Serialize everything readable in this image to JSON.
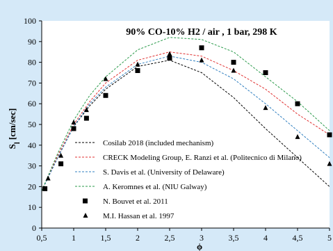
{
  "chart_data": {
    "type": "line",
    "title": "90% CO-10% H2 / air , 1 bar, 298 K",
    "xlabel": "ϕ",
    "ylabel": "S_l [cm/sec]",
    "xlim": [
      0.5,
      5.0
    ],
    "ylim": [
      0,
      100
    ],
    "x_ticks": [
      "0,5",
      "1",
      "1,5",
      "2",
      "2,5",
      "3",
      "3,5",
      "4",
      "4,5",
      "5"
    ],
    "y_ticks": [
      "0",
      "10",
      "20",
      "30",
      "40",
      "50",
      "60",
      "70",
      "80",
      "90",
      "100"
    ],
    "grid": false,
    "legend_position": "bottom-left",
    "series": [
      {
        "name": "Cosilab 2018 (included mechanism)",
        "style": "dashed-line",
        "color": "#000000",
        "x": [
          0.5,
          0.75,
          1.0,
          1.25,
          1.5,
          2.0,
          2.5,
          3.0,
          3.5,
          4.0,
          4.5,
          5.0
        ],
        "y": [
          18,
          34,
          49,
          59,
          67,
          78,
          81,
          75,
          63,
          48,
          34,
          20
        ]
      },
      {
        "name": "CRECK Modeling Group, E. Ranzi et al. (Politecnico di Milano)",
        "style": "dashed-line",
        "color": "#e03030",
        "x": [
          0.5,
          0.75,
          1.0,
          1.25,
          1.5,
          2.0,
          2.5,
          3.0,
          3.5,
          4.0,
          4.5,
          5.0
        ],
        "y": [
          18,
          35,
          50,
          61,
          70,
          81,
          85,
          83,
          76,
          67,
          55,
          45
        ]
      },
      {
        "name": "S. Davis et al. (University of Delaware)",
        "style": "dashed-line",
        "color": "#2f7fc0",
        "x": [
          0.5,
          0.75,
          1.0,
          1.25,
          1.5,
          2.0,
          2.5,
          3.0,
          3.5,
          4.0,
          4.5,
          5.0
        ],
        "y": [
          18,
          34,
          49,
          60,
          68,
          79,
          83,
          80,
          72,
          60,
          47,
          34
        ]
      },
      {
        "name": "A. Keromnes et al. (NIU Galway)",
        "style": "dashed-line",
        "color": "#2a9a4a",
        "x": [
          0.5,
          0.75,
          1.0,
          1.25,
          1.5,
          2.0,
          2.5,
          3.0,
          3.5,
          4.0,
          4.5,
          5.0
        ],
        "y": [
          18,
          36,
          52,
          64,
          73,
          86,
          92,
          91,
          85,
          73,
          61,
          47
        ]
      },
      {
        "name": "N. Bouvet et al. 2011",
        "style": "square-markers",
        "color": "#000000",
        "x": [
          0.55,
          0.8,
          1.0,
          1.2,
          1.5,
          2.0,
          2.5,
          3.0,
          3.5,
          4.0,
          4.5,
          5.0
        ],
        "y": [
          19,
          31,
          48,
          53,
          64,
          76,
          82,
          87,
          80,
          75,
          60,
          45
        ]
      },
      {
        "name": "M.I. Hassan et al. 1997",
        "style": "triangle-markers",
        "color": "#000000",
        "x": [
          0.6,
          0.8,
          1.0,
          1.2,
          1.5,
          2.0,
          2.5,
          3.0,
          3.5,
          4.0,
          4.5,
          5.0
        ],
        "y": [
          24,
          35,
          51,
          57,
          72,
          79,
          84,
          81,
          76,
          58,
          44,
          31
        ]
      }
    ]
  }
}
